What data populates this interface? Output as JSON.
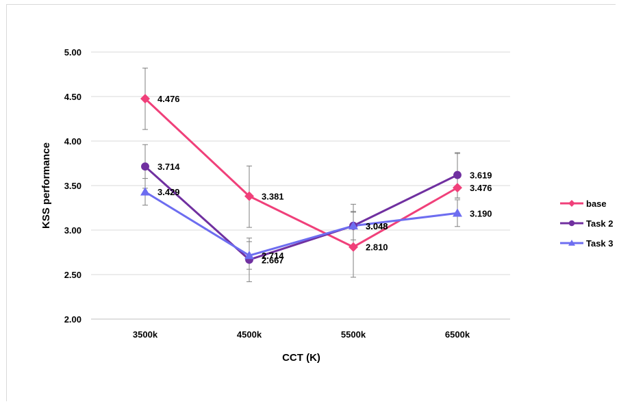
{
  "chart_data": {
    "type": "line",
    "title": "",
    "xlabel": "CCT  (K)",
    "ylabel": "KSS performance",
    "categories": [
      "3500k",
      "4500k",
      "5500k",
      "6500k"
    ],
    "ylim": [
      2.0,
      5.0
    ],
    "yticks": [
      "2.00",
      "2.50",
      "3.00",
      "3.50",
      "4.00",
      "4.50",
      "5.00"
    ],
    "grid": true,
    "legend_position": "right",
    "series": [
      {
        "name": "base",
        "color": "#f0407a",
        "marker": "diamond",
        "values": [
          4.476,
          3.381,
          2.81,
          3.476
        ],
        "labels": [
          "4.476",
          "3.381",
          "2.810",
          "3.476"
        ],
        "error_low": [
          4.13,
          3.03,
          2.47,
          3.36
        ],
        "error_high": [
          4.82,
          3.72,
          3.21,
          3.86
        ]
      },
      {
        "name": "Task 2",
        "color": "#7030a0",
        "marker": "circle",
        "values": [
          3.714,
          2.667,
          3.048,
          3.619
        ],
        "labels": [
          "3.714",
          "2.667",
          "3.048",
          "3.619"
        ],
        "error_low": [
          3.47,
          2.42,
          2.8,
          3.36
        ],
        "error_high": [
          3.96,
          2.91,
          3.29,
          3.87
        ]
      },
      {
        "name": "Task 3",
        "color": "#6d6df0",
        "marker": "triangle",
        "values": [
          3.429,
          2.714,
          3.048,
          3.19
        ],
        "labels": [
          "3.429",
          "2.714",
          "3.048",
          "3.190"
        ],
        "error_low": [
          3.28,
          2.56,
          2.89,
          3.04
        ],
        "error_high": [
          3.58,
          2.87,
          3.2,
          3.34
        ]
      }
    ]
  }
}
